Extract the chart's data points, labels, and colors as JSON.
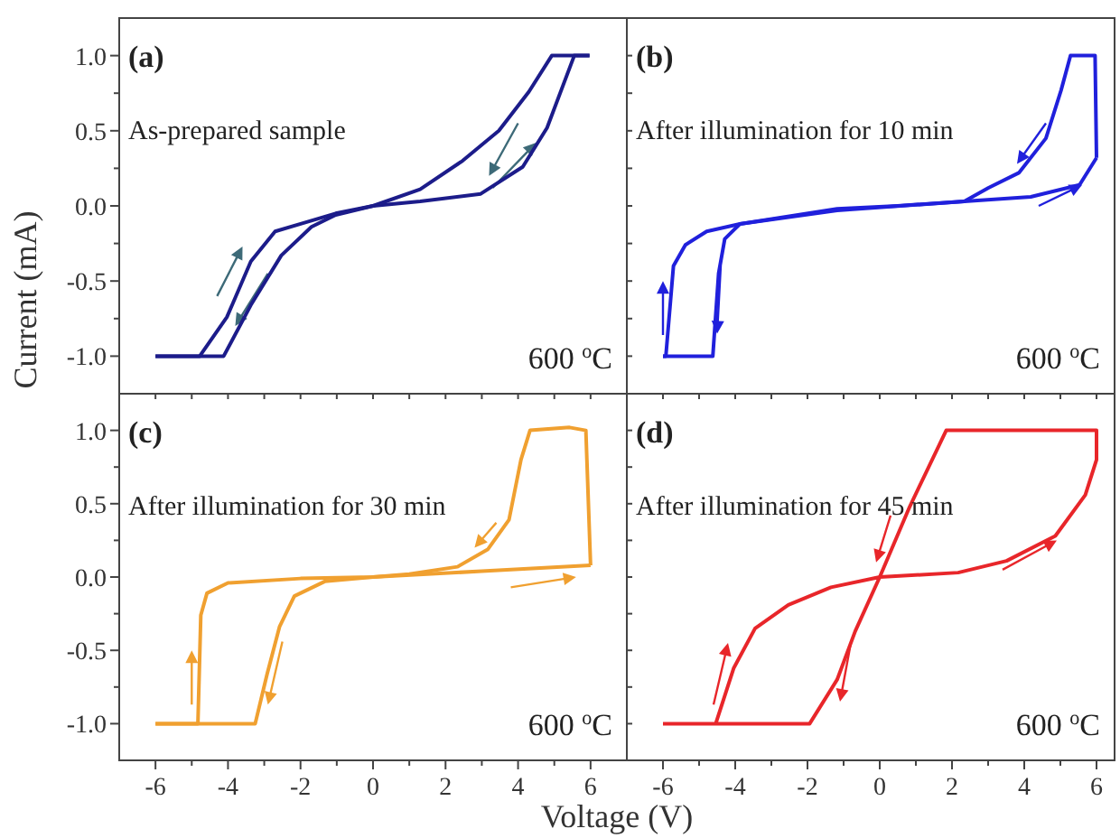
{
  "chart_data": [
    {
      "type": "line",
      "ylabel": "Current (mA)",
      "annotations": [
        "(a)",
        "As-prepared sample",
        "600 $^{o}$C"
      ],
      "tick_labels": "y",
      "xlim": [
        -7,
        7
      ],
      "ylim": [
        -1.25,
        1.25
      ],
      "xticks": [
        {
          "value": -6,
          "label": null
        },
        {
          "value": -5,
          "label": null
        },
        {
          "value": -4,
          "label": null
        },
        {
          "value": -3,
          "label": null
        },
        {
          "value": -2,
          "label": null
        },
        {
          "value": -1,
          "label": null
        },
        {
          "value": 0,
          "label": null
        },
        {
          "value": 1,
          "label": null
        },
        {
          "value": 2,
          "label": null
        },
        {
          "value": 3,
          "label": null
        },
        {
          "value": 4,
          "label": null
        },
        {
          "value": 5,
          "label": null
        },
        {
          "value": 6,
          "label": null
        }
      ],
      "yticks": [
        {
          "value": -1,
          "label": "-1.0"
        },
        {
          "value": -0.75,
          "label": null
        },
        {
          "value": -0.5,
          "label": "-0.5"
        },
        {
          "value": -0.25,
          "label": null
        },
        {
          "value": 0,
          "label": "0.0"
        },
        {
          "value": 0.25,
          "label": null
        },
        {
          "value": 0.5,
          "label": "0.5"
        },
        {
          "value": 0.75,
          "label": null
        },
        {
          "value": 1,
          "label": "1.0"
        }
      ],
      "series": [
        {
          "color": "#1c1c8a",
          "x": [
            -6,
            -4.78,
            -4.03,
            -3.37,
            -2.7,
            -1.87,
            -1.03,
            0,
            1.3,
            2.97,
            4.13,
            4.8,
            5.55,
            5.97
          ],
          "values": [
            -1,
            -1,
            -0.74,
            -0.37,
            -0.17,
            -0.11,
            -0.05,
            0,
            0.03,
            0.08,
            0.26,
            0.52,
            1,
            1
          ]
        },
        {
          "color": "#1c1c8a",
          "x": [
            5.97,
            4.93,
            4.3,
            3.47,
            2.47,
            1.3,
            0,
            -1.03,
            -1.7,
            -2.53,
            -3.37,
            -4.12,
            -6
          ],
          "values": [
            1,
            1,
            0.76,
            0.5,
            0.3,
            0.11,
            0,
            -0.06,
            -0.14,
            -0.33,
            -0.66,
            -1,
            -1
          ]
        }
      ]
    },
    {
      "type": "line",
      "annotations": [
        "(b)",
        "After illumination for 10 min",
        "600 $^{o}$C"
      ],
      "tick_labels": false,
      "xlim": [
        -7,
        6.5
      ],
      "ylim": [
        -1.25,
        1.25
      ],
      "xticks": [
        {
          "value": -6,
          "label": null
        },
        {
          "value": -5,
          "label": null
        },
        {
          "value": -4,
          "label": null
        },
        {
          "value": -3,
          "label": null
        },
        {
          "value": -2,
          "label": null
        },
        {
          "value": -1,
          "label": null
        },
        {
          "value": 0,
          "label": null
        },
        {
          "value": 1,
          "label": null
        },
        {
          "value": 2,
          "label": null
        },
        {
          "value": 3,
          "label": null
        },
        {
          "value": 4,
          "label": null
        },
        {
          "value": 5,
          "label": null
        },
        {
          "value": 6,
          "label": null
        }
      ],
      "yticks": [
        {
          "value": -1,
          "label": null
        },
        {
          "value": -0.75,
          "label": null
        },
        {
          "value": -0.5,
          "label": null
        },
        {
          "value": -0.25,
          "label": null
        },
        {
          "value": 0,
          "label": null
        },
        {
          "value": 0.25,
          "label": null
        },
        {
          "value": 0.5,
          "label": null
        },
        {
          "value": 0.75,
          "label": null
        },
        {
          "value": 1,
          "label": null
        }
      ],
      "series": [
        {
          "color": "#2020dc",
          "x": [
            -6,
            -5.92,
            -5.71,
            -5.38,
            -4.79,
            -3.87,
            -1.18,
            0.49,
            2.34,
            4.18,
            5.53,
            6
          ],
          "values": [
            -1,
            -1,
            -0.4,
            -0.26,
            -0.17,
            -0.12,
            -0.02,
            0,
            0.03,
            0.06,
            0.14,
            0.32
          ]
        },
        {
          "color": "#2020dc",
          "x": [
            6,
            5.96,
            5.28,
            5.02,
            4.6,
            3.85,
            3.01,
            2.34,
            -1.18,
            -3.87,
            -4.29,
            -4.46,
            -4.62,
            -6
          ],
          "values": [
            0.32,
            1,
            1,
            0.77,
            0.45,
            0.22,
            0.12,
            0.03,
            -0.03,
            -0.12,
            -0.22,
            -0.45,
            -1,
            -1
          ]
        }
      ]
    },
    {
      "type": "line",
      "xlabel": "Voltage (V)",
      "annotations": [
        "(c)",
        "After illumination for 30 min",
        "600 $^{o}$C"
      ],
      "xlim": [
        -7,
        7
      ],
      "ylim": [
        -1.25,
        1.25
      ],
      "xticks": [
        {
          "value": -6,
          "label": "-6"
        },
        {
          "value": -5,
          "label": null
        },
        {
          "value": -4,
          "label": "-4"
        },
        {
          "value": -3,
          "label": null
        },
        {
          "value": -2,
          "label": "-2"
        },
        {
          "value": -1,
          "label": null
        },
        0,
        {
          "value": 1,
          "label": null
        },
        2,
        {
          "value": 3,
          "label": null
        },
        4,
        {
          "value": 5,
          "label": null
        },
        6
      ],
      "yticks": [
        {
          "value": -1,
          "label": "-1.0"
        },
        {
          "value": -0.75,
          "label": null
        },
        {
          "value": -0.5,
          "label": "-0.5"
        },
        {
          "value": -0.25,
          "label": null
        },
        {
          "value": 0,
          "label": "0.0"
        },
        {
          "value": 0.25,
          "label": null
        },
        {
          "value": 0.5,
          "label": "0.5"
        },
        {
          "value": 0.75,
          "label": null
        },
        {
          "value": 1,
          "label": "1.0"
        }
      ],
      "series": [
        {
          "color": "#f0a030",
          "x": [
            -6,
            -4.83,
            -4.75,
            -4.58,
            -4,
            -2,
            0,
            3,
            6
          ],
          "values": [
            -1,
            -1,
            -0.26,
            -0.11,
            -0.04,
            -0.01,
            0,
            0.04,
            0.08
          ]
        },
        {
          "color": "#f0a030",
          "x": [
            6,
            5.87,
            5.42,
            4.33,
            4.08,
            3.75,
            3.17,
            2.33,
            1,
            0,
            -1.33,
            -2.17,
            -2.58,
            -2.92,
            -3.25,
            -6
          ],
          "values": [
            0.08,
            1,
            1.02,
            1,
            0.8,
            0.39,
            0.19,
            0.07,
            0.02,
            0,
            -0.03,
            -0.13,
            -0.34,
            -0.66,
            -1,
            -1
          ]
        }
      ]
    },
    {
      "type": "line",
      "annotations": [
        "(d)",
        "After illumination for 45 min",
        "600 $^{o}$C"
      ],
      "tick_labels": "x",
      "xlim": [
        -7,
        6.5
      ],
      "ylim": [
        -1.25,
        1.25
      ],
      "xticks": [
        {
          "value": -6,
          "label": "-6"
        },
        {
          "value": -5,
          "label": null
        },
        {
          "value": -4,
          "label": "-4"
        },
        {
          "value": -3,
          "label": null
        },
        {
          "value": -2,
          "label": "-2"
        },
        {
          "value": -1,
          "label": null
        },
        0,
        {
          "value": 1,
          "label": null
        },
        2,
        {
          "value": 3,
          "label": null
        },
        4,
        {
          "value": 5,
          "label": null
        },
        6
      ],
      "yticks": [
        {
          "value": -1,
          "label": null
        },
        {
          "value": -0.75,
          "label": null
        },
        {
          "value": -0.5,
          "label": null
        },
        {
          "value": -0.25,
          "label": null
        },
        {
          "value": 0,
          "label": null
        },
        {
          "value": 0.25,
          "label": null
        },
        {
          "value": 0.5,
          "label": null
        },
        {
          "value": 0.75,
          "label": null
        },
        {
          "value": 1,
          "label": null
        }
      ],
      "series": [
        {
          "color": "#e8262a",
          "x": [
            -4.54,
            -4.04,
            -3.45,
            -2.53,
            -1.35,
            0,
            2.17,
            3.51,
            4.86,
            5.69,
            6,
            6,
            1.84,
            0.83,
            0,
            -0.68,
            -1.18,
            -1.94,
            -6
          ],
          "values": [
            -1,
            -0.62,
            -0.35,
            -0.19,
            -0.07,
            0,
            0.03,
            0.11,
            0.28,
            0.56,
            0.8,
            1,
            1,
            0.48,
            0,
            -0.37,
            -0.7,
            -1,
            -1
          ]
        }
      ]
    }
  ]
}
